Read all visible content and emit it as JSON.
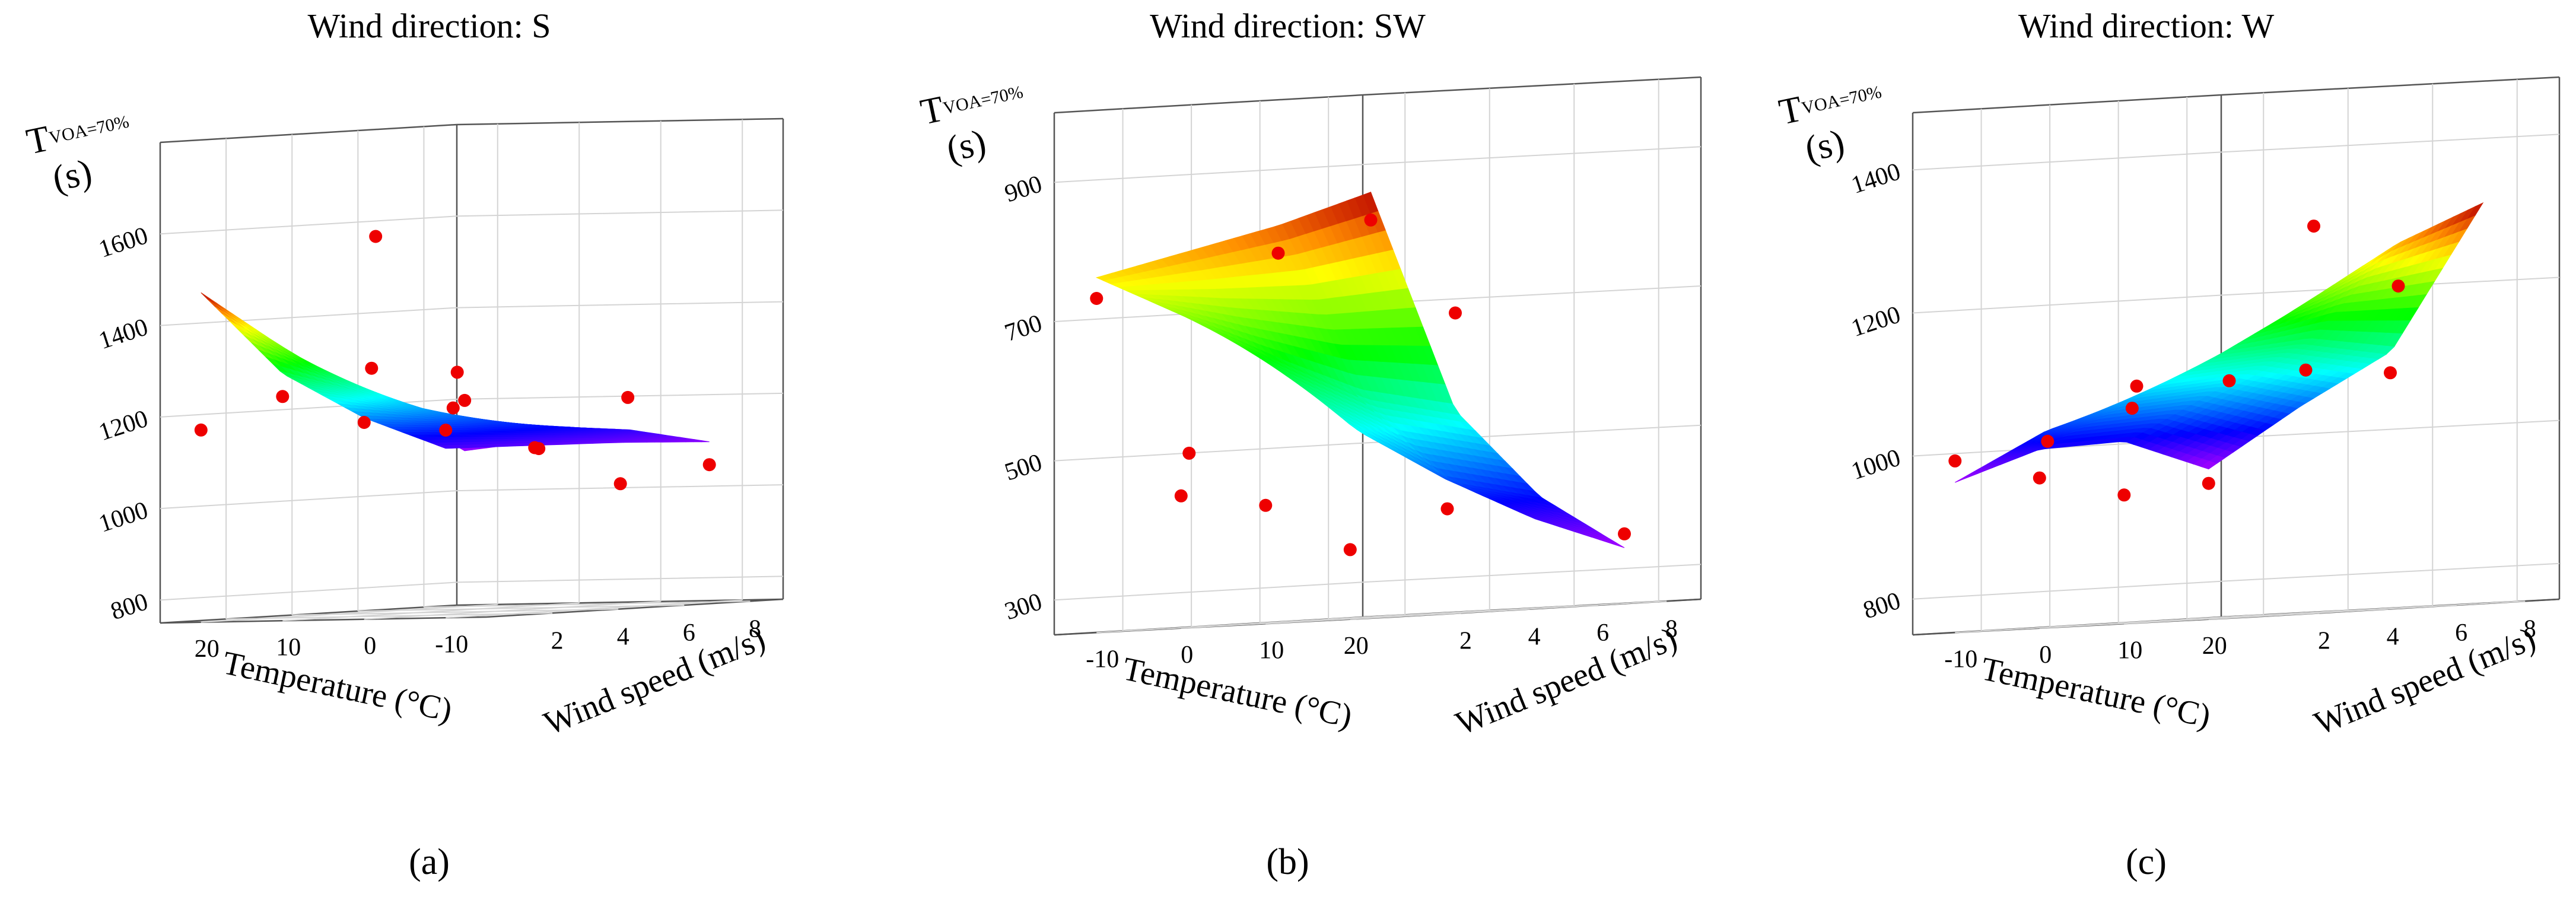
{
  "chart_data": [
    {
      "type": "surface3d",
      "title": "Wind direction: S",
      "panel_label": "(a)",
      "xlabel": "Temperature (°C)",
      "ylabel": "Wind speed (m/s)",
      "zlabel_main": "T",
      "zlabel_sub": "VOA=70%",
      "zlabel_unit": "(s)",
      "x_ticks": [
        20,
        10,
        0,
        -10
      ],
      "y_ticks": [
        2,
        4,
        6,
        8
      ],
      "z_ticks": [
        800,
        1000,
        1200,
        1400,
        1600
      ],
      "xlim": [
        -15,
        25
      ],
      "ylim": [
        0,
        9
      ],
      "zlim": [
        750,
        1800
      ],
      "x_direction": "descending",
      "surface": {
        "x": [
          -10,
          0,
          10,
          20
        ],
        "y": [
          0,
          2.7,
          5.3,
          8
        ],
        "z": [
          [
            1120,
            1190,
            1290,
            1470
          ],
          [
            1115,
            1170,
            1230,
            1330
          ],
          [
            1110,
            1150,
            1170,
            1210
          ],
          [
            1100,
            1130,
            1110,
            1090
          ]
        ]
      },
      "points": [
        {
          "x": -10,
          "y": 0,
          "z": 1160
        },
        {
          "x": -10,
          "y": 2.7,
          "z": 1110
        },
        {
          "x": -10,
          "y": 5.3,
          "z": 1020
        },
        {
          "x": -10,
          "y": 8,
          "z": 1050
        },
        {
          "x": 0,
          "y": 0,
          "z": 1180
        },
        {
          "x": 0,
          "y": 2.7,
          "z": 1200
        },
        {
          "x": 0,
          "y": 5.3,
          "z": 1100
        },
        {
          "x": 0,
          "y": 8,
          "z": 1200
        },
        {
          "x": 10,
          "y": 0,
          "z": 1240
        },
        {
          "x": 10,
          "y": 2.7,
          "z": 1290
        },
        {
          "x": 10,
          "y": 5.3,
          "z": 1270
        },
        {
          "x": 20,
          "y": 0,
          "z": 1170
        },
        {
          "x": 20,
          "y": 5.3,
          "z": 1570
        },
        {
          "x": 20,
          "y": 8,
          "z": 1200
        }
      ]
    },
    {
      "type": "surface3d",
      "title": "Wind direction: SW",
      "panel_label": "(b)",
      "xlabel": "Temperature (°C)",
      "ylabel": "Wind speed (m/s)",
      "zlabel_main": "T",
      "zlabel_sub": "VOA=70%",
      "zlabel_unit": "(s)",
      "x_ticks": [
        -10,
        0,
        10,
        20
      ],
      "y_ticks": [
        2,
        4,
        6,
        8
      ],
      "z_ticks": [
        300,
        500,
        700,
        900
      ],
      "xlim": [
        -15,
        25
      ],
      "ylim": [
        0,
        9
      ],
      "zlim": [
        250,
        1000
      ],
      "x_direction": "ascending",
      "surface": {
        "x": [
          -10,
          0,
          10,
          20
        ],
        "y": [
          0,
          2.7,
          5.3,
          8
        ],
        "z": [
          [
            760,
            700,
            640,
            580
          ],
          [
            790,
            630,
            520,
            450
          ],
          [
            820,
            570,
            440,
            380
          ],
          [
            860,
            540,
            410,
            330
          ]
        ]
      },
      "points": [
        {
          "x": -10,
          "y": 0,
          "z": 730
        },
        {
          "x": -10,
          "y": 2.7,
          "z": 500
        },
        {
          "x": -10,
          "y": 5.3,
          "z": 780
        },
        {
          "x": -10,
          "y": 8,
          "z": 820
        },
        {
          "x": 0,
          "y": 0,
          "z": 440
        },
        {
          "x": 0,
          "y": 8,
          "z": 680
        },
        {
          "x": 10,
          "y": 0,
          "z": 420
        },
        {
          "x": 10,
          "y": 5.3,
          "z": 400
        },
        {
          "x": 20,
          "y": 0,
          "z": 350
        },
        {
          "x": 20,
          "y": 8,
          "z": 350
        }
      ]
    },
    {
      "type": "surface3d",
      "title": "Wind direction: W",
      "panel_label": "(c)",
      "xlabel": "Temperature (°C)",
      "ylabel": "Wind speed (m/s)",
      "zlabel_main": "T",
      "zlabel_sub": "VOA=70%",
      "zlabel_unit": "(s)",
      "x_ticks": [
        -10,
        0,
        10,
        20
      ],
      "y_ticks": [
        2,
        4,
        6,
        8
      ],
      "z_ticks": [
        800,
        1000,
        1200,
        1400
      ],
      "xlim": [
        -15,
        25
      ],
      "ylim": [
        0,
        9
      ],
      "zlim": [
        750,
        1480
      ],
      "x_direction": "ascending",
      "surface": {
        "x": [
          -10,
          0,
          10,
          20
        ],
        "y": [
          0,
          2.7,
          5.3,
          8
        ],
        "z": [
          [
            960,
            1000,
            1005,
            960
          ],
          [
            1025,
            1060,
            1070,
            1040
          ],
          [
            1060,
            1120,
            1130,
            1110
          ],
          [
            1070,
            1190,
            1260,
            1310
          ]
        ]
      },
      "points": [
        {
          "x": -10,
          "y": 0,
          "z": 990
        },
        {
          "x": -10,
          "y": 2.7,
          "z": 1010
        },
        {
          "x": -10,
          "y": 5.3,
          "z": 1080
        },
        {
          "x": -10,
          "y": 8,
          "z": 1080
        },
        {
          "x": 0,
          "y": 0,
          "z": 960
        },
        {
          "x": 0,
          "y": 2.7,
          "z": 1050
        },
        {
          "x": 0,
          "y": 8,
          "z": 1290
        },
        {
          "x": 10,
          "y": 0,
          "z": 930
        },
        {
          "x": 10,
          "y": 5.3,
          "z": 1090
        },
        {
          "x": 10,
          "y": 8,
          "z": 1200
        },
        {
          "x": 20,
          "y": 0,
          "z": 940
        },
        {
          "x": 20,
          "y": 5.3,
          "z": 1080
        }
      ]
    }
  ]
}
